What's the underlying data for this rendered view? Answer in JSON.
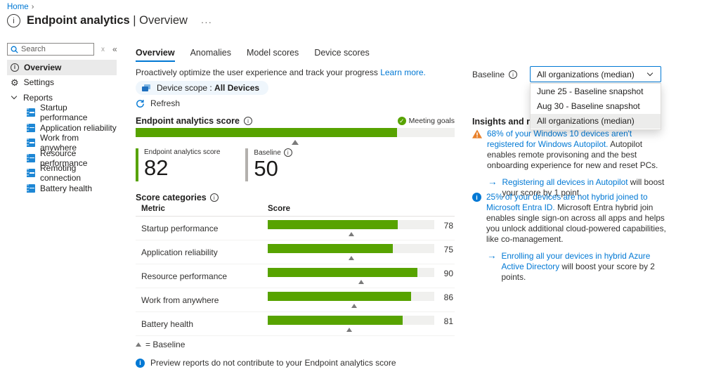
{
  "breadcrumb": {
    "home": "Home",
    "sep": "›"
  },
  "header": {
    "title": "Endpoint analytics",
    "title_sep": "| Overview",
    "ellipsis": "···",
    "info_glyph": "i"
  },
  "sidebar": {
    "search_placeholder": "Search",
    "clear_glyph": "x",
    "collapse_glyph": "«",
    "overview": "Overview",
    "settings": "Settings",
    "reports": "Reports",
    "report_items": [
      "Startup performance",
      "Application reliability",
      "Work from anywhere",
      "Resource performance",
      "Remoting connection",
      "Battery health"
    ]
  },
  "tabs": [
    "Overview",
    "Anomalies",
    "Model scores",
    "Device scores"
  ],
  "main": {
    "intro": "Proactively optimize the user experience and track your progress",
    "learn_more": "Learn more.",
    "device_scope_label": "Device scope :",
    "device_scope_value": "All Devices",
    "refresh": "Refresh"
  },
  "score": {
    "title": "Endpoint analytics score",
    "status": "Meeting goals",
    "check_glyph": "✓",
    "value": 82,
    "value_label": "Endpoint analytics score",
    "baseline": 50,
    "baseline_label": "Baseline",
    "max": 100
  },
  "categories": {
    "title": "Score categories",
    "col_metric": "Metric",
    "col_score": "Score",
    "rows": [
      {
        "metric": "Startup performance",
        "score": 78,
        "baseline": 50
      },
      {
        "metric": "Application reliability",
        "score": 75,
        "baseline": 50
      },
      {
        "metric": "Resource performance",
        "score": 90,
        "baseline": 56
      },
      {
        "metric": "Work from anywhere",
        "score": 86,
        "baseline": 52
      },
      {
        "metric": "Battery health",
        "score": 81,
        "baseline": 49
      }
    ],
    "legend": "= Baseline",
    "note": "Preview reports do not contribute to your Endpoint analytics score"
  },
  "baseline_dropdown": {
    "label": "Baseline",
    "selected": "All organizations (median)",
    "options": [
      "June 25 - Baseline snapshot",
      "Aug 30 - Baseline snapshot",
      "All organizations (median)"
    ]
  },
  "insights": {
    "title": "Insights and recommendations",
    "items": [
      {
        "link": "68% of your Windows 10 devices aren't registered for Windows Autopilot.",
        "text": " Autopilot enables remote provisoning and the best onboarding experience for new and reset PCs.",
        "action_link": "Registering all devices in Autopilot",
        "action_text": " will boost your score by 1 point.",
        "arrow": "→"
      },
      {
        "link": "25% of your devices are not hybrid joined to Microsoft Entra ID.",
        "text": " Microsoft Entra hybrid join enables single sign-on across all apps and helps you unlock additional cloud-powered capabilities, like co-management.",
        "action_link": "Enrolling all your devices in hybrid Azure Active Directory",
        "action_text": " will boost your score by 2 points.",
        "arrow": "→"
      }
    ]
  },
  "colors": {
    "accent": "#0078d4",
    "bar_green": "#57a300",
    "bar_track": "#f0f0ee",
    "warning_orange": "#e8802a",
    "selected_nav_bg": "#eaeaea"
  }
}
